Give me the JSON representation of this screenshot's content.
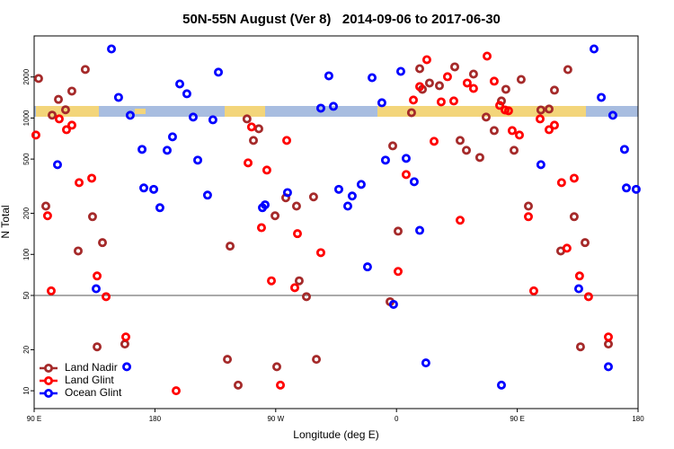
{
  "chart_data": {
    "type": "scatter",
    "title": "50N-55N August (Ver 8)   2014-09-06 to 2017-06-30",
    "x_label": "Longitude (deg E)",
    "y_label": "N Total",
    "log_y": true,
    "legend": "lower left",
    "reference_line": 50,
    "xlim": [
      90,
      540
    ],
    "ylim": [
      7.4,
      4000
    ],
    "xticks": [
      {
        "value": 90,
        "label": "90 E"
      },
      {
        "value": 180,
        "label": "180"
      },
      {
        "value": 270,
        "label": "90 W"
      },
      {
        "value": 360,
        "label": "0"
      },
      {
        "value": 450,
        "label": "90 E"
      },
      {
        "value": 540,
        "label": "180"
      }
    ],
    "yticks": [
      10,
      20,
      50,
      100,
      200,
      500,
      1000,
      2000
    ],
    "series": [
      {
        "name": "Land Nadir",
        "color": "#a52a2a",
        "x": [
          93.3,
          103.4,
          108.1,
          113.4,
          118.1,
          128.1,
          122.8,
          133.5,
          136.9,
          140.9,
          157.6,
          98.7,
          236,
          234,
          242,
          248.6,
          253.4,
          257.4,
          269.5,
          270.8,
          277.5,
          285.5,
          287.5,
          292.9,
          298.2,
          300.3,
          355.2,
          357.2,
          361.2,
          371.2,
          377.3,
          379.3,
          384.6,
          392,
          403.4,
          407.4,
          412.1,
          417.4,
          422.1,
          426.8,
          432.8,
          438.2,
          441.5,
          447.6,
          452.9,
          458.3,
          467.6,
          473.7,
          477.7,
          482.4,
          487.7,
          492.4,
          497.1,
          500.5,
          517.9
        ],
        "values": [
          1950,
          1050,
          1370,
          1150,
          1575,
          2270,
          106,
          189,
          21,
          122,
          22,
          226,
          115,
          17,
          11,
          985,
          685,
          834,
          192,
          15,
          260,
          226,
          64,
          49,
          264,
          17,
          45,
          625,
          148,
          1095,
          2300,
          1624,
          1806,
          1726,
          2372,
          685,
          580,
          2100,
          514,
          1016,
          809,
          1334,
          1624,
          580,
          1918,
          226,
          1146,
          1164,
          1600,
          106,
          2265,
          189,
          21,
          122,
          22
        ]
      },
      {
        "name": "Land Glint",
        "color": "#ff0000",
        "x": [
          91.3,
          100,
          102.7,
          108.7,
          114.1,
          118.1,
          123.5,
          132.9,
          136.9,
          143.6,
          158.3,
          195.8,
          249.4,
          252,
          259.4,
          263.4,
          266.8,
          273.5,
          278.2,
          286.2,
          284.2,
          303.6,
          361.2,
          367.2,
          372.6,
          377.3,
          382.6,
          388,
          393.3,
          398,
          402.7,
          407.4,
          412.7,
          417.4,
          427.5,
          432.8,
          436.9,
          440.9,
          443.5,
          446.2,
          451.6,
          458.3,
          462.3,
          467,
          473.7,
          477.7,
          483,
          487,
          492.4,
          496.4,
          503.1,
          517.9
        ],
        "values": [
          750,
          192,
          54,
          985,
          821,
          886,
          336,
          362,
          69.5,
          49,
          24.8,
          10,
          469,
          860,
          157,
          415,
          64,
          11,
          685,
          142,
          57,
          103,
          75,
          385,
          1355,
          1700,
          2677,
          675,
          1313,
          2009,
          1334,
          178,
          1806,
          1648,
          2844,
          1862,
          1237,
          1146,
          1130,
          809,
          750,
          189,
          54,
          985,
          821,
          886,
          336,
          111,
          362,
          69.5,
          49,
          24.8
        ]
      },
      {
        "name": "Ocean Glint",
        "color": "#0000ff",
        "x": [
          107.4,
          136.2,
          147.6,
          152.9,
          161.6,
          170.4,
          171.7,
          179.1,
          183.7,
          189.1,
          193.1,
          198.5,
          203.8,
          208.5,
          211.9,
          219.2,
          223.2,
          227.3,
          260.1,
          262.1,
          278.8,
          159,
          303.6,
          309.6,
          313,
          317,
          323.7,
          327,
          333.7,
          338.4,
          341.8,
          349.1,
          351.8,
          357.8,
          363.2,
          367.2,
          373.2,
          377.3,
          381.9,
          438.2,
          467.6,
          495.8,
          507.2,
          512.6,
          521.2,
          529.9,
          531.3,
          538.6,
          517.9
        ],
        "values": [
          455,
          56,
          3210,
          1417,
          1047,
          589,
          307,
          300,
          220,
          580,
          728,
          1778,
          1506,
          1016,
          491,
          272,
          970,
          2168,
          220,
          231,
          284,
          15,
          1181,
          2038,
          1218,
          300,
          226,
          268,
          326,
          81,
          1976,
          1294,
          491,
          43,
          2198,
          506,
          341,
          150,
          16,
          11,
          455,
          56,
          3210,
          1417,
          1047,
          589,
          307,
          300,
          15
        ]
      }
    ]
  }
}
